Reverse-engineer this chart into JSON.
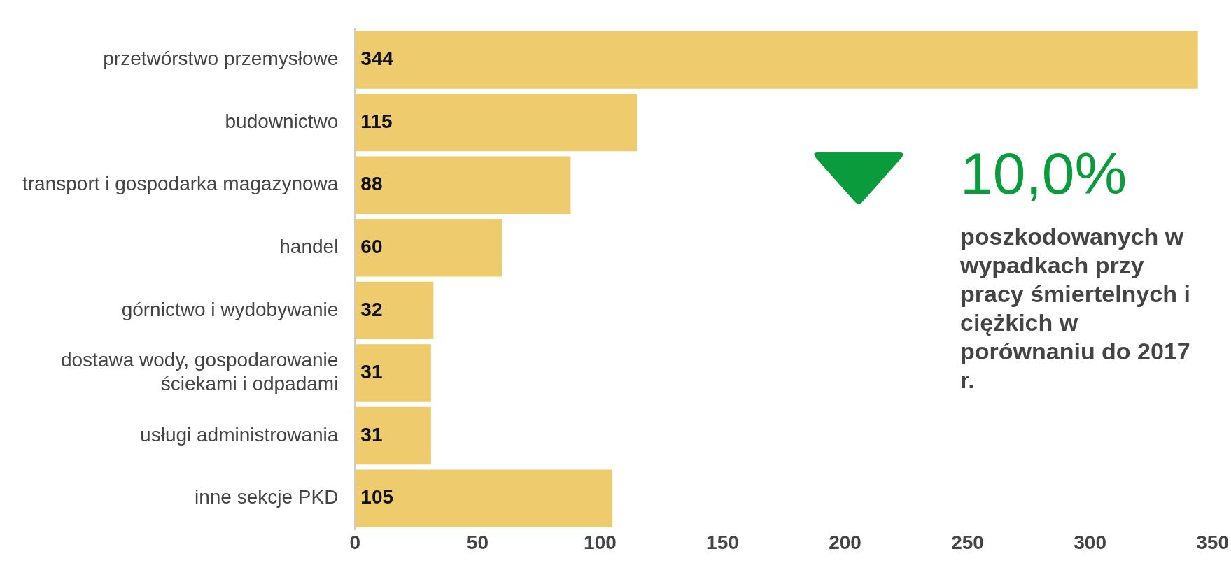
{
  "chart_data": {
    "type": "bar",
    "orientation": "horizontal",
    "categories": [
      "przetwórstwo przemysłowe",
      "budownictwo",
      "transport i gospodarka magazynowa",
      "handel",
      "górnictwo i wydobywanie",
      "dostawa wody, gospodarowanie ściekami i odpadami",
      "usługi administrowania",
      "inne sekcje PKD"
    ],
    "values": [
      344,
      115,
      88,
      60,
      32,
      31,
      31,
      105
    ],
    "color": "#eecb6c",
    "xlim": [
      0,
      350
    ],
    "xticks": [
      0,
      50,
      100,
      150,
      200,
      250,
      300,
      350
    ],
    "grid": false,
    "legend": false,
    "data_labels": true,
    "annotations": [
      "10,0%",
      "poszkodowanych w wypadkach przy pracy śmiertelnych i ciężkich w porównaniu do 2017 r."
    ]
  }
}
